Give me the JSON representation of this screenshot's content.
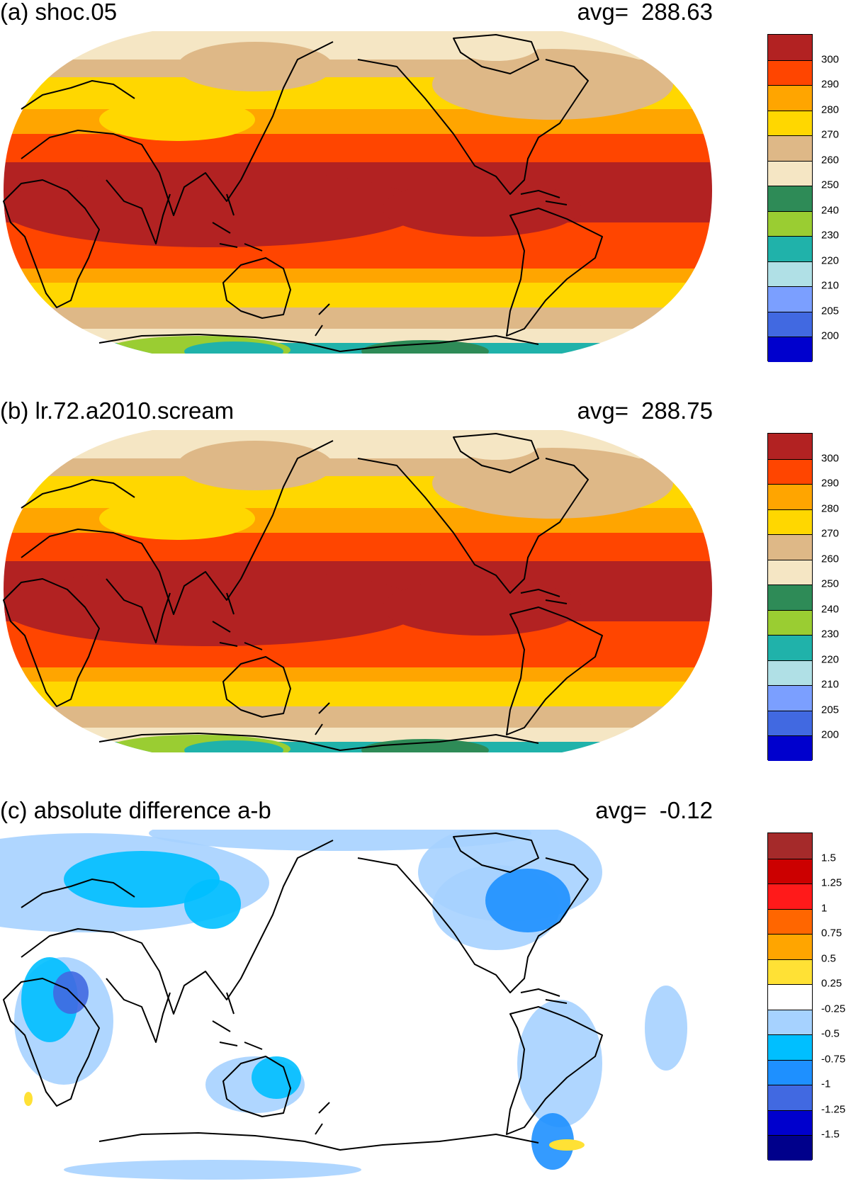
{
  "panels": [
    {
      "id": "a",
      "title": "(a) shoc.05",
      "avg_label": "avg=",
      "avg_value": "288.63",
      "type": "temperature",
      "colorbar": {
        "colors": [
          "#b22222",
          "#ff4500",
          "#ffa500",
          "#ffd700",
          "#deb887",
          "#f5e6c4",
          "#2e8b57",
          "#9acd32",
          "#20b2aa",
          "#b0e0e6",
          "#7b9fff",
          "#4169e1",
          "#0000cd"
        ],
        "labels": [
          "300",
          "290",
          "280",
          "270",
          "260",
          "250",
          "240",
          "230",
          "220",
          "210",
          "205",
          "200"
        ]
      }
    },
    {
      "id": "b",
      "title": "(b) lr.72.a2010.scream",
      "avg_label": "avg=",
      "avg_value": "288.75",
      "type": "temperature",
      "colorbar": {
        "colors": [
          "#b22222",
          "#ff4500",
          "#ffa500",
          "#ffd700",
          "#deb887",
          "#f5e6c4",
          "#2e8b57",
          "#9acd32",
          "#20b2aa",
          "#b0e0e6",
          "#7b9fff",
          "#4169e1",
          "#0000cd"
        ],
        "labels": [
          "300",
          "290",
          "280",
          "270",
          "260",
          "250",
          "240",
          "230",
          "220",
          "210",
          "205",
          "200"
        ]
      }
    },
    {
      "id": "c",
      "title": "(c) absolute difference a-b",
      "avg_label": "avg=",
      "avg_value": "-0.12",
      "type": "difference",
      "colorbar": {
        "colors": [
          "#a52a2a",
          "#cc0000",
          "#ff1a1a",
          "#ff6600",
          "#ffa500",
          "#ffe135",
          "#ffffff",
          "#a6d2ff",
          "#00bfff",
          "#1e90ff",
          "#4169e1",
          "#0000cd",
          "#00008b"
        ],
        "labels": [
          "1.5",
          "1.25",
          "1",
          "0.75",
          "0.5",
          "0.25",
          "-0.25",
          "-0.5",
          "-0.75",
          "-1",
          "-1.25",
          "-1.5"
        ]
      }
    }
  ]
}
